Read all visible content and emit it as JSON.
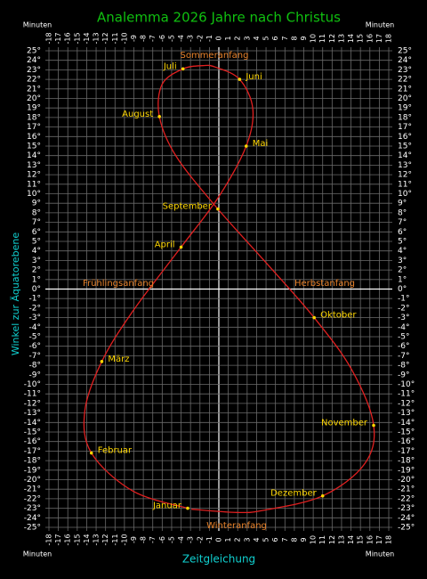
{
  "chart_data": {
    "type": "line",
    "title": "Analemma  2026 Jahre nach Christus",
    "x_label": "Zeitgleichung",
    "y_label": "Winkel zur Äquatorebene",
    "unit_label": "Minuten",
    "xlim": [
      -18,
      18
    ],
    "ylim": [
      -25,
      25
    ],
    "xticks": [
      -18,
      -17,
      -16,
      -15,
      -14,
      -13,
      -12,
      -11,
      -10,
      -9,
      -8,
      -7,
      -6,
      -5,
      -4,
      -3,
      -2,
      -1,
      0,
      1,
      2,
      3,
      4,
      5,
      6,
      7,
      8,
      9,
      10,
      11,
      12,
      13,
      14,
      15,
      16,
      17,
      18
    ],
    "yticks": [
      {
        "value": 25,
        "label": "25°"
      },
      {
        "value": 24,
        "label": "24°"
      },
      {
        "value": 23,
        "label": "23°"
      },
      {
        "value": 22,
        "label": "22°"
      },
      {
        "value": 21,
        "label": "21°"
      },
      {
        "value": 20,
        "label": "20°"
      },
      {
        "value": 19,
        "label": "19°"
      },
      {
        "value": 18,
        "label": "18°"
      },
      {
        "value": 17,
        "label": "17°"
      },
      {
        "value": 16,
        "label": "16°"
      },
      {
        "value": 15,
        "label": "15°"
      },
      {
        "value": 14,
        "label": "14°"
      },
      {
        "value": 13,
        "label": "13°"
      },
      {
        "value": 12,
        "label": "12°"
      },
      {
        "value": 11,
        "label": "11°"
      },
      {
        "value": 10,
        "label": "10°"
      },
      {
        "value": 9,
        "label": "9°"
      },
      {
        "value": 8,
        "label": "8°"
      },
      {
        "value": 7,
        "label": "7°"
      },
      {
        "value": 6,
        "label": "6°"
      },
      {
        "value": 5,
        "label": "5°"
      },
      {
        "value": 4,
        "label": "4°"
      },
      {
        "value": 3,
        "label": "3°"
      },
      {
        "value": 2,
        "label": "2°"
      },
      {
        "value": 1,
        "label": "1°"
      },
      {
        "value": 0,
        "label": "0°"
      },
      {
        "value": -1,
        "label": "-1°"
      },
      {
        "value": -2,
        "label": "-2°"
      },
      {
        "value": -3,
        "label": "-3°"
      },
      {
        "value": -4,
        "label": "-4°"
      },
      {
        "value": -5,
        "label": "-5°"
      },
      {
        "value": -6,
        "label": "-6°"
      },
      {
        "value": -7,
        "label": "-7°"
      },
      {
        "value": -8,
        "label": "-8°"
      },
      {
        "value": -9,
        "label": "-9°"
      },
      {
        "value": -10,
        "label": "-10°"
      },
      {
        "value": -11,
        "label": "-11°"
      },
      {
        "value": -12,
        "label": "-12°"
      },
      {
        "value": -13,
        "label": "-13°"
      },
      {
        "value": -14,
        "label": "-14°"
      },
      {
        "value": -15,
        "label": "-15°"
      },
      {
        "value": -16,
        "label": "-16°"
      },
      {
        "value": -17,
        "label": "-17°"
      },
      {
        "value": -18,
        "label": "-18°"
      },
      {
        "value": -19,
        "label": "-19°"
      },
      {
        "value": -20,
        "label": "-20°"
      },
      {
        "value": -21,
        "label": "-21°"
      },
      {
        "value": -22,
        "label": "-22°"
      },
      {
        "value": -23,
        "label": "-23°"
      },
      {
        "value": -24,
        "label": "-24°"
      },
      {
        "value": -25,
        "label": "-25°"
      }
    ],
    "grid": true,
    "curve": {
      "color": "#e02020",
      "x": [
        -3.3,
        -9.1,
        -13.5,
        -14.2,
        -12.4,
        -9.1,
        -4.0,
        0.0,
        2.9,
        3.6,
        2.2,
        -0.4,
        -1.7,
        -3.8,
        -6.0,
        -6.3,
        -4.5,
        -0.1,
        4.7,
        10.1,
        14.1,
        16.4,
        15.4,
        11.0,
        4.8,
        1.9,
        -2.9
      ],
      "y": [
        -23.0,
        -21.2,
        -17.2,
        -12.8,
        -7.6,
        -2.3,
        4.4,
        9.7,
        15.0,
        18.9,
        22.0,
        23.3,
        23.44,
        23.1,
        21.5,
        18.1,
        13.9,
        8.4,
        3.1,
        -3.0,
        -8.5,
        -14.3,
        -18.4,
        -21.7,
        -23.2,
        -23.44,
        -23.1
      ]
    },
    "months": {
      "color": "#ffd700",
      "names": [
        "Januar",
        "Februar",
        "März",
        "April",
        "Mai",
        "Juni",
        "Juli",
        "August",
        "September",
        "Oktober",
        "November",
        "Dezember"
      ],
      "x": [
        -3.3,
        -13.5,
        -12.4,
        -4.0,
        2.9,
        2.2,
        -3.8,
        -6.3,
        -0.1,
        10.1,
        16.4,
        11.0
      ],
      "y": [
        -23.0,
        -17.2,
        -7.6,
        4.4,
        15.0,
        22.0,
        23.1,
        18.1,
        8.4,
        -3.0,
        -14.3,
        -21.7
      ]
    },
    "seasons": {
      "color": "#e8822a",
      "names": [
        "Sommeranfang",
        "Winteranfang",
        "Frühlingsanfang",
        "Herbstanfang"
      ]
    }
  }
}
